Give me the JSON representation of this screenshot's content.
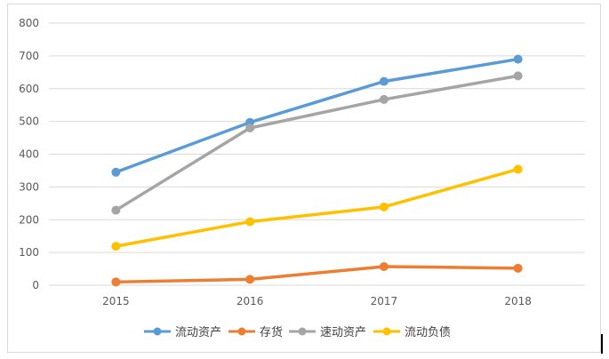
{
  "chart_data": {
    "type": "line",
    "title": "",
    "xlabel": "",
    "ylabel": "",
    "categories": [
      "2015",
      "2016",
      "2017",
      "2018"
    ],
    "ylim": [
      0,
      800
    ],
    "yticks": [
      "0",
      "100",
      "200",
      "300",
      "400",
      "500",
      "600",
      "700",
      "800"
    ],
    "grid": true,
    "legend_position": "bottom",
    "series": [
      {
        "name": "流动资产",
        "color": "#5b9bd5",
        "values": [
          345,
          497,
          622,
          690
        ]
      },
      {
        "name": "存货",
        "color": "#ed7d31",
        "values": [
          10,
          18,
          57,
          52
        ]
      },
      {
        "name": "速动资产",
        "color": "#a5a5a5",
        "values": [
          229,
          480,
          567,
          639
        ]
      },
      {
        "name": "流动负债",
        "color": "#ffc000",
        "values": [
          119,
          194,
          239,
          354
        ]
      }
    ]
  }
}
